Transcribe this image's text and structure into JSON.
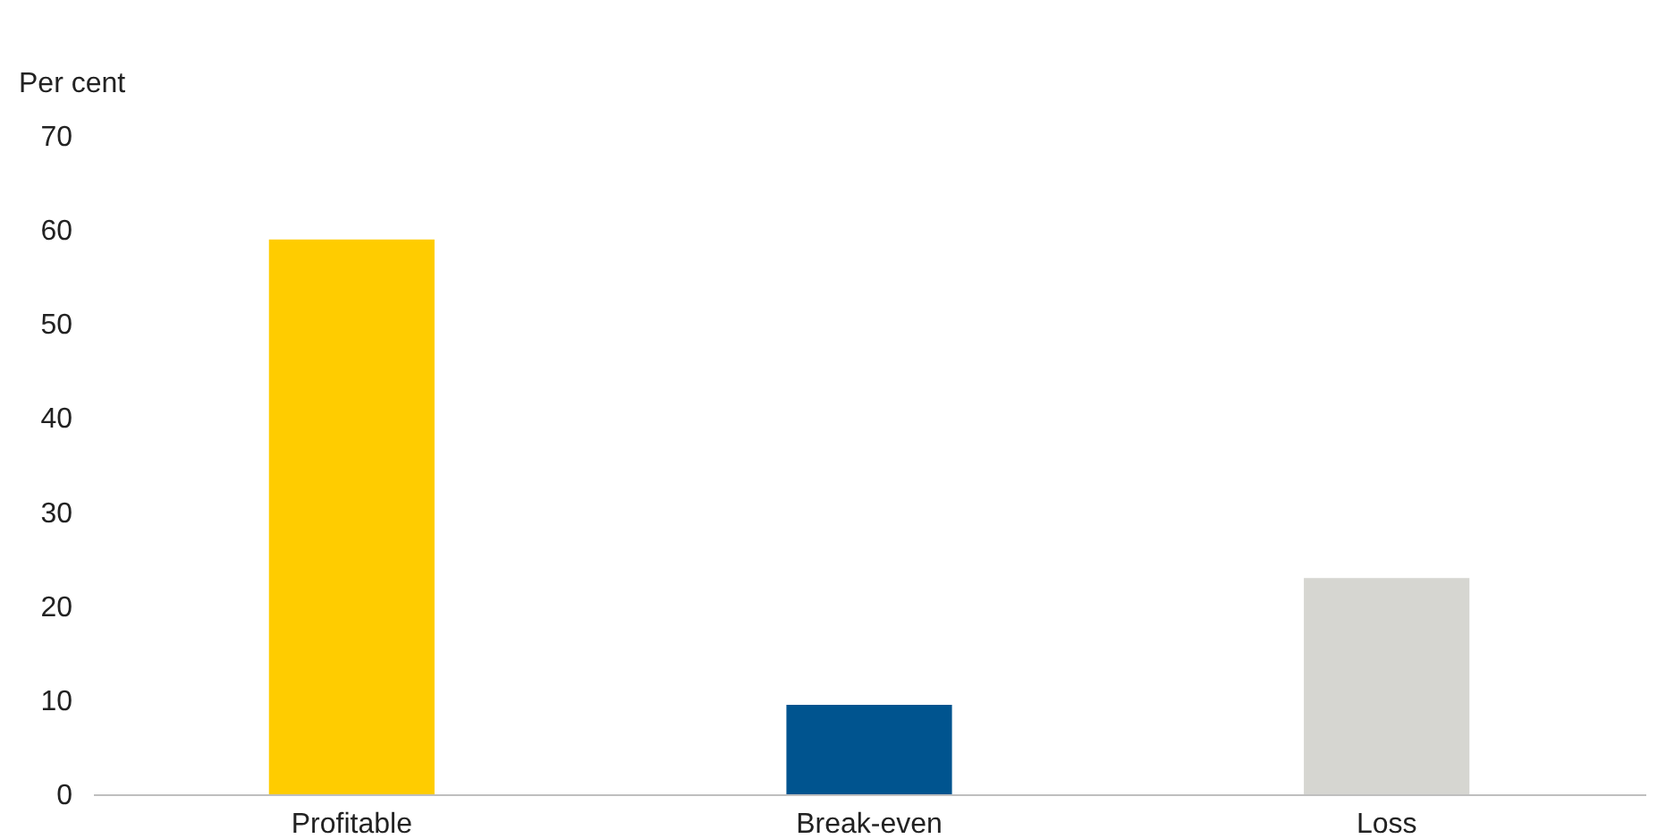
{
  "chart_data": {
    "type": "bar",
    "ylabel": "Per cent",
    "categories": [
      "Profitable",
      "Break-even",
      "Loss"
    ],
    "values": [
      59,
      9.5,
      23
    ],
    "colors": [
      "#ffcc00",
      "#00548f",
      "#d6d6d1"
    ],
    "ylim": [
      0,
      70
    ],
    "yticks": [
      0,
      10,
      20,
      30,
      40,
      50,
      60,
      70
    ],
    "grid": false,
    "legend": false
  }
}
